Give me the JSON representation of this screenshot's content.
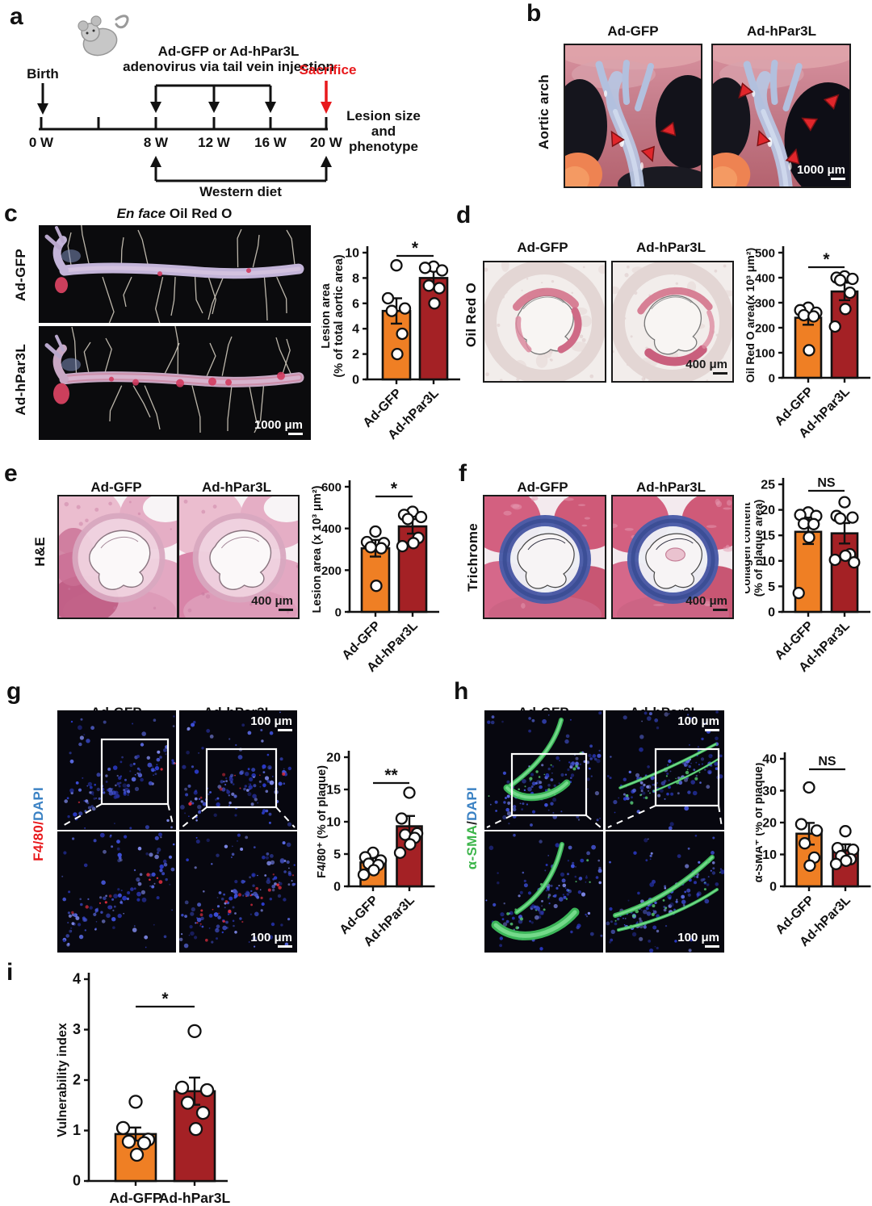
{
  "colors": {
    "orange": "#EF7F24",
    "dark_red": "#A42125",
    "sacrifice_red": "#E8191C",
    "stain_f480_red": "#E8191C",
    "dapi_blue": "#3B82C4",
    "sma_green": "#3CB54A"
  },
  "panel_a": {
    "label": "a",
    "birth": "Birth",
    "injection_l1": "Ad-GFP or Ad-hPar3L",
    "injection_l2": "adenovirus via tail vein injection",
    "sacrifice": "Sacrifice",
    "ticks": [
      "0 W",
      "8 W",
      "12 W",
      "16 W",
      "20 W"
    ],
    "outcome": [
      "Lesion size",
      "and",
      "phenotype"
    ],
    "western": "Western diet"
  },
  "panel_b": {
    "label": "b",
    "row_label": "Aortic arch",
    "cols": [
      "Ad-GFP",
      "Ad-hPar3L"
    ],
    "scale": "1000 μm"
  },
  "panel_c": {
    "label": "c",
    "title_italic": "En face",
    "title_rest": " Oil Red O",
    "rows": [
      "Ad-GFP",
      "Ad-hPar3L"
    ],
    "scale": "1000 μm"
  },
  "panel_d": {
    "label": "d",
    "row_label": "Oil Red O",
    "cols": [
      "Ad-GFP",
      "Ad-hPar3L"
    ],
    "scale": "400 μm"
  },
  "panel_e": {
    "label": "e",
    "row_label": "H&E",
    "cols": [
      "Ad-GFP",
      "Ad-hPar3L"
    ],
    "scale": "400 μm"
  },
  "panel_f": {
    "label": "f",
    "row_label": "Trichrome",
    "cols": [
      "Ad-GFP",
      "Ad-hPar3L"
    ],
    "scale": "400 μm"
  },
  "panel_g": {
    "label": "g",
    "stain": "F4/80",
    "sep": "/",
    "dapi": "DAPI",
    "cols": [
      "Ad-GFP",
      "Ad-hPar3L"
    ],
    "scale_top": "100 μm",
    "scale_bottom": "100 μm"
  },
  "panel_h": {
    "label": "h",
    "stain": "α-SMA",
    "sep": "/",
    "dapi": "DAPI",
    "cols": [
      "Ad-GFP",
      "Ad-hPar3L"
    ],
    "scale_top": "100 μm",
    "scale_bottom": "100 μm"
  },
  "panel_i": {
    "label": "i"
  },
  "chart_data": [
    {
      "id": "c",
      "type": "bar",
      "categories": [
        "Ad-GFP",
        "Ad-hPar3L"
      ],
      "means": [
        5.4,
        8.0
      ],
      "sem": [
        1.0,
        0.55
      ],
      "points": [
        [
          9.0,
          6.4,
          5.6,
          5.4,
          3.6,
          2.0
        ],
        [
          8.9,
          8.8,
          8.6,
          7.4,
          7.2,
          6.0
        ]
      ],
      "sig": "*",
      "ylabel": [
        "Lesion area",
        "(% of total aortic area)"
      ],
      "ylim": [
        0,
        10
      ],
      "yticks": [
        0,
        2,
        4,
        6,
        8,
        10
      ],
      "bar_colors": [
        "#EF7F24",
        "#A42125"
      ]
    },
    {
      "id": "d",
      "type": "bar",
      "categories": [
        "Ad-GFP",
        "Ad-hPar3L"
      ],
      "means": [
        240,
        345
      ],
      "sem": [
        28,
        35
      ],
      "points": [
        [
          280,
          270,
          260,
          250,
          245,
          110
        ],
        [
          405,
          400,
          395,
          390,
          340,
          275,
          205
        ]
      ],
      "sig": "*",
      "ylabel": [
        "Oil Red O area(x 10³ μm²)"
      ],
      "ylim": [
        0,
        500
      ],
      "yticks": [
        0,
        100,
        200,
        300,
        400,
        500
      ],
      "bar_colors": [
        "#EF7F24",
        "#A42125"
      ]
    },
    {
      "id": "e",
      "type": "bar",
      "categories": [
        "Ad-GFP",
        "Ad-hPar3L"
      ],
      "means": [
        305,
        410
      ],
      "sem": [
        40,
        35
      ],
      "points": [
        [
          385,
          335,
          330,
          310,
          305,
          125
        ],
        [
          480,
          465,
          455,
          445,
          355,
          330,
          315
        ]
      ],
      "sig": "*",
      "ylabel": [
        "Lesion area (x 10³ μm²)"
      ],
      "ylim": [
        0,
        600
      ],
      "yticks": [
        0,
        200,
        400,
        600
      ],
      "bar_colors": [
        "#EF7F24",
        "#A42125"
      ]
    },
    {
      "id": "f",
      "type": "bar",
      "categories": [
        "Ad-GFP",
        "Ad-hPar3L"
      ],
      "means": [
        15.7,
        15.4
      ],
      "sem": [
        2.4,
        2.0
      ],
      "points": [
        [
          19.5,
          19.0,
          18.8,
          17.3,
          17.2,
          14.6,
          3.7
        ],
        [
          21.5,
          18.8,
          18.5,
          18.3,
          11.3,
          11.0,
          10.2,
          9.7
        ]
      ],
      "sig": "NS",
      "ylabel": [
        "Collagen content",
        "(% of plaque area)"
      ],
      "ylim": [
        0,
        25
      ],
      "yticks": [
        0,
        5,
        10,
        15,
        20,
        25
      ],
      "bar_colors": [
        "#EF7F24",
        "#A42125"
      ]
    },
    {
      "id": "g",
      "type": "bar",
      "categories": [
        "Ad-GFP",
        "Ad-hPar3L"
      ],
      "means": [
        3.7,
        9.3
      ],
      "sem": [
        0.7,
        1.6
      ],
      "points": [
        [
          5.2,
          4.5,
          4.0,
          3.5,
          3.3,
          2.5,
          1.8
        ],
        [
          14.5,
          10.5,
          8.2,
          8.0,
          7.5,
          6.5,
          5.2
        ]
      ],
      "sig": "**",
      "ylabel": [
        "F4/80⁺ (% of plaque)"
      ],
      "ylim": [
        0,
        20
      ],
      "yticks": [
        0,
        5,
        10,
        15,
        20
      ],
      "bar_colors": [
        "#EF7F24",
        "#A42125"
      ]
    },
    {
      "id": "h",
      "type": "bar",
      "categories": [
        "Ad-GFP",
        "Ad-hPar3L"
      ],
      "means": [
        16.5,
        11.3
      ],
      "sem": [
        3.4,
        1.9
      ],
      "points": [
        [
          31.0,
          19.5,
          17.5,
          13.5,
          9.0,
          6.5
        ],
        [
          17.3,
          12.0,
          11.5,
          9.5,
          8.5,
          8.0,
          7.0
        ]
      ],
      "sig": "NS",
      "ylabel": [
        "α-SMA⁺ (% of plaque)"
      ],
      "ylim": [
        0,
        40
      ],
      "yticks": [
        0,
        10,
        20,
        30,
        40
      ],
      "bar_colors": [
        "#EF7F24",
        "#A42125"
      ]
    },
    {
      "id": "i",
      "type": "bar",
      "categories": [
        "Ad-GFP",
        "Ad-hPar3L"
      ],
      "means": [
        0.93,
        1.78
      ],
      "sem": [
        0.13,
        0.27
      ],
      "points": [
        [
          1.57,
          1.05,
          0.82,
          0.78,
          0.75,
          0.52
        ],
        [
          2.97,
          1.85,
          1.8,
          1.55,
          1.35,
          1.03
        ]
      ],
      "sig": "*",
      "ylabel": [
        "Vulnerability index"
      ],
      "ylim": [
        0,
        4
      ],
      "yticks": [
        0,
        1,
        2,
        3,
        4
      ],
      "bar_colors": [
        "#EF7F24",
        "#A42125"
      ]
    }
  ]
}
